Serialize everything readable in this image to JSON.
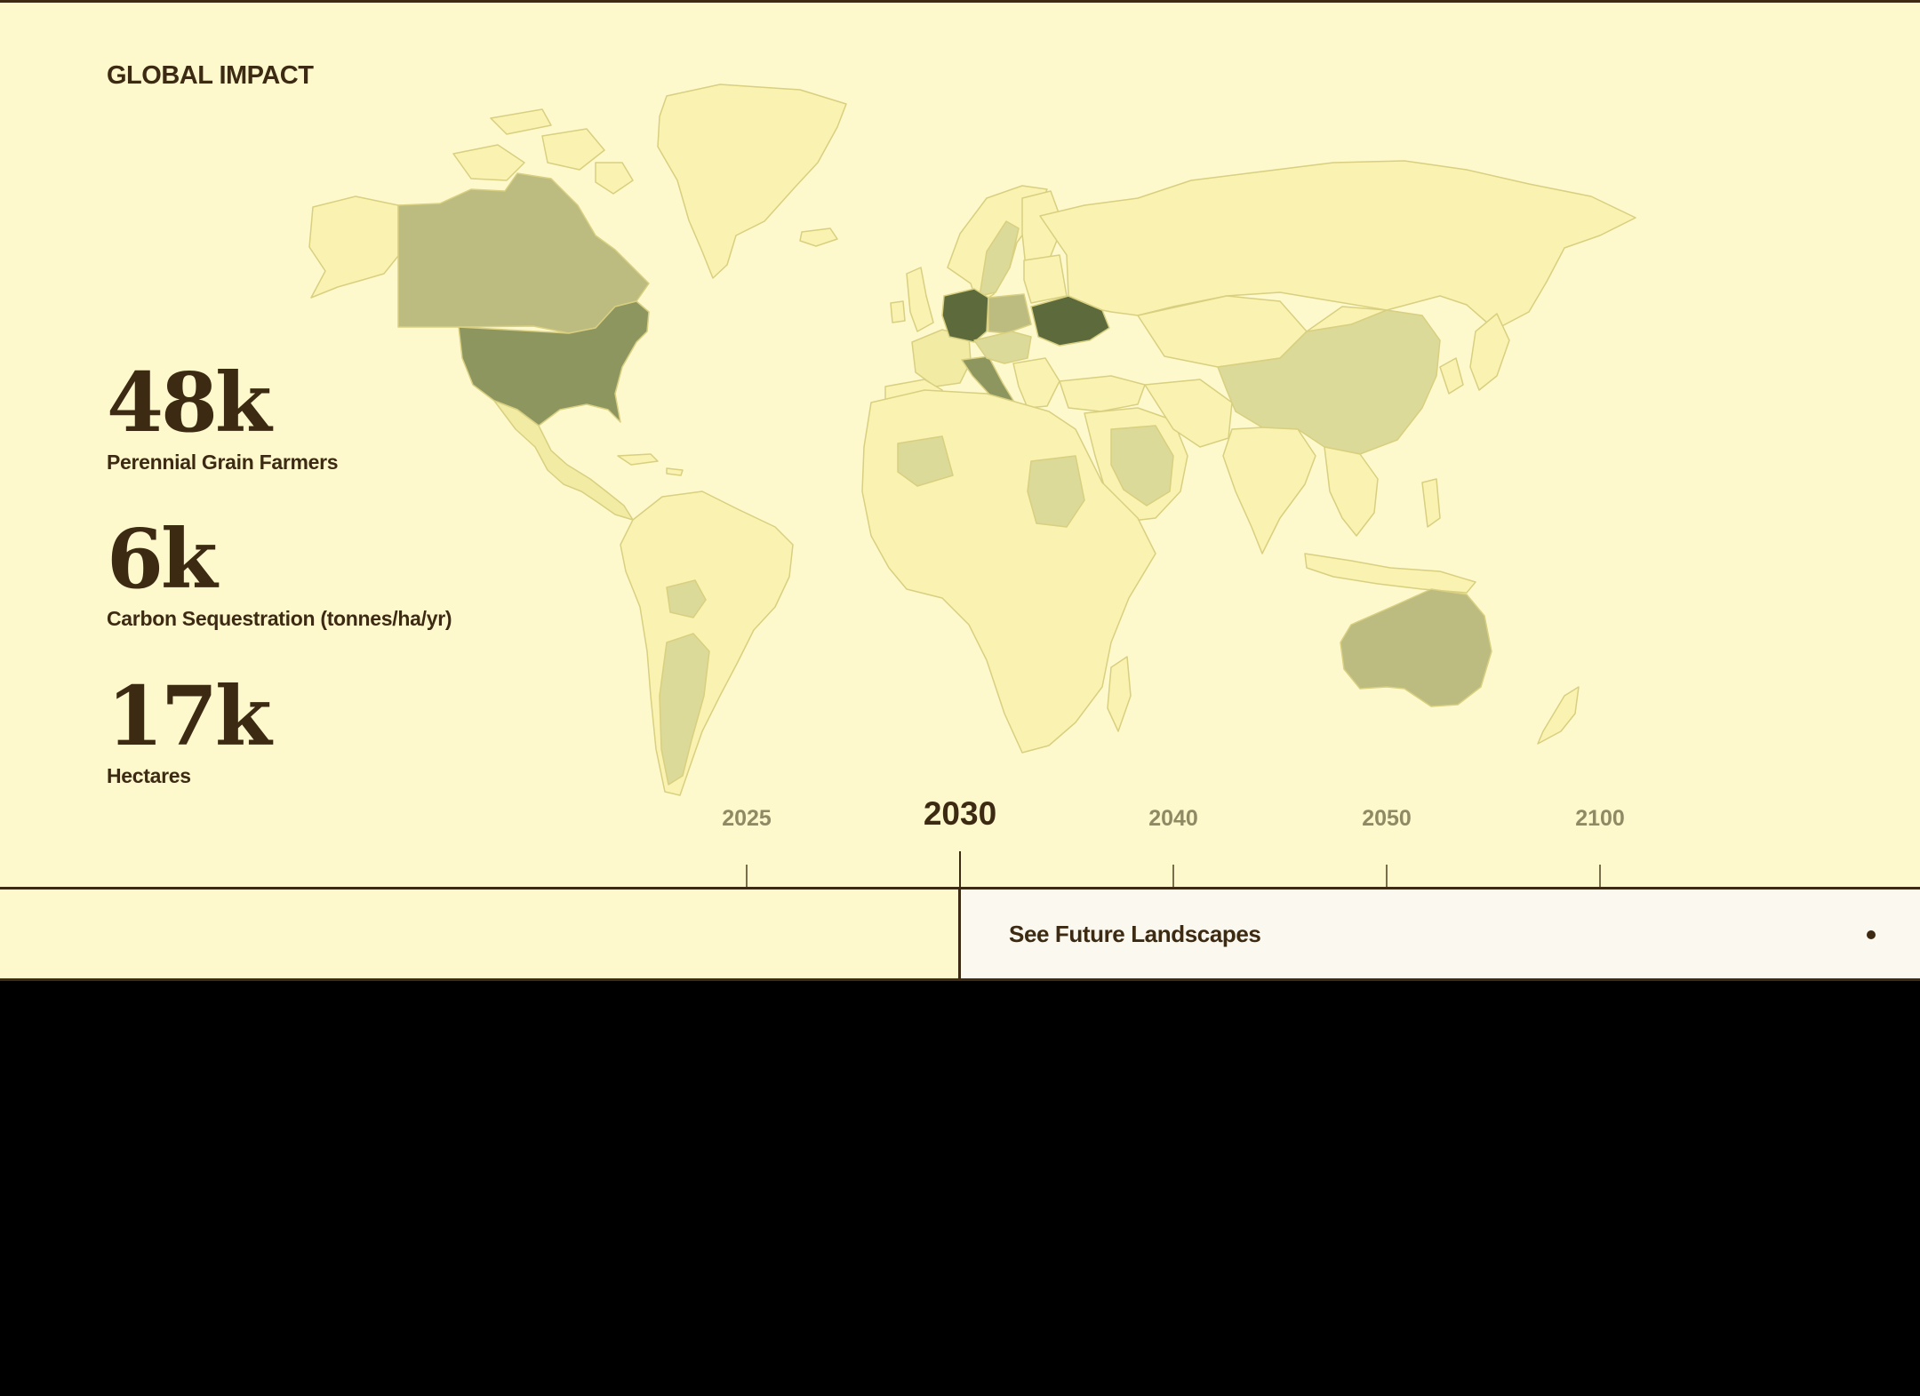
{
  "heading": "GLOBAL IMPACT",
  "stats": [
    {
      "value": "48k",
      "label": "Perennial Grain Farmers"
    },
    {
      "value": "6k",
      "label": "Carbon Sequestration (tonnes/ha/yr)"
    },
    {
      "value": "17k",
      "label": "Hectares"
    }
  ],
  "timeline": {
    "years": [
      "2025",
      "2030",
      "2040",
      "2050",
      "2100"
    ],
    "selected": "2030"
  },
  "cta": {
    "label": "See Future Landscapes"
  },
  "colors": {
    "background": "#fef9cd",
    "text": "#3d2a12",
    "map_shades": [
      "#faf2b0",
      "#f2eba3",
      "#dbda98",
      "#bcbc80",
      "#8e9660",
      "#5d6b3c"
    ]
  }
}
